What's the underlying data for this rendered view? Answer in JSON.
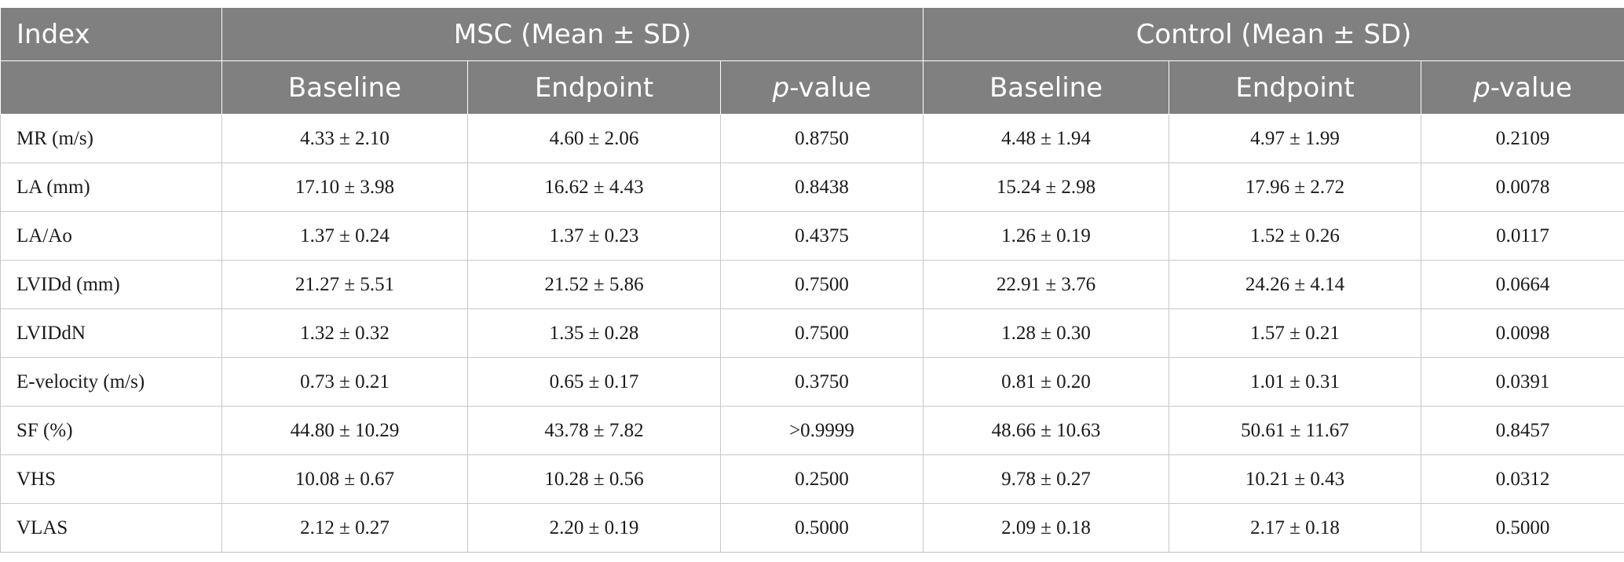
{
  "table": {
    "index_header": "Index",
    "group_msc": "MSC (Mean ± SD)",
    "group_control": "Control (Mean ± SD)",
    "sub_baseline": "Baseline",
    "sub_endpoint": "Endpoint",
    "sub_pvalue_p": "p",
    "sub_pvalue_rest": "-value",
    "rows": [
      {
        "label": "MR (m/s)",
        "cells": [
          "4.33 ± 2.10",
          "4.60 ± 2.06",
          "0.8750",
          "4.48 ± 1.94",
          "4.97 ± 1.99",
          "0.2109"
        ]
      },
      {
        "label": "LA (mm)",
        "cells": [
          "17.10 ± 3.98",
          "16.62 ± 4.43",
          "0.8438",
          "15.24 ± 2.98",
          "17.96 ± 2.72",
          "0.0078"
        ]
      },
      {
        "label": "LA/Ao",
        "cells": [
          "1.37 ± 0.24",
          "1.37 ± 0.23",
          "0.4375",
          "1.26 ± 0.19",
          "1.52 ± 0.26",
          "0.0117"
        ]
      },
      {
        "label": "LVIDd (mm)",
        "cells": [
          "21.27 ± 5.51",
          "21.52 ± 5.86",
          "0.7500",
          "22.91 ± 3.76",
          "24.26 ± 4.14",
          "0.0664"
        ]
      },
      {
        "label": "LVIDdN",
        "cells": [
          "1.32 ± 0.32",
          "1.35 ± 0.28",
          "0.7500",
          "1.28 ± 0.30",
          "1.57 ± 0.21",
          "0.0098"
        ]
      },
      {
        "label": "E-velocity (m/s)",
        "cells": [
          "0.73 ± 0.21",
          "0.65 ± 0.17",
          "0.3750",
          "0.81 ± 0.20",
          "1.01 ± 0.31",
          "0.0391"
        ]
      },
      {
        "label": "SF (%)",
        "cells": [
          "44.80 ± 10.29",
          "43.78 ± 7.82",
          ">0.9999",
          "48.66 ± 10.63",
          "50.61 ± 11.67",
          "0.8457"
        ]
      },
      {
        "label": "VHS",
        "cells": [
          "10.08 ± 0.67",
          "10.28 ± 0.56",
          "0.2500",
          "9.78 ± 0.27",
          "10.21 ± 0.43",
          "0.0312"
        ]
      },
      {
        "label": "VLAS",
        "cells": [
          "2.12 ± 0.27",
          "2.20 ± 0.19",
          "0.5000",
          "2.09 ± 0.18",
          "2.17 ± 0.18",
          "0.5000"
        ]
      }
    ]
  }
}
